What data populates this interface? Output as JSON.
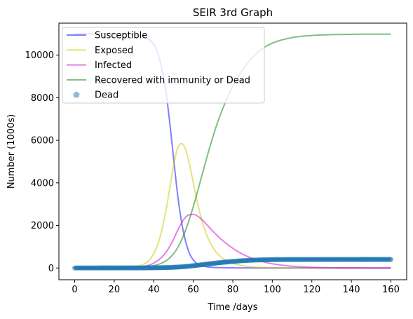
{
  "chart_data": {
    "type": "line",
    "title": "SEIR 3rd Graph",
    "xlabel": "Time /days",
    "ylabel": "Number (1000s)",
    "xlim": [
      -8,
      168
    ],
    "ylim": [
      -550,
      11500
    ],
    "xticks": [
      0,
      20,
      40,
      60,
      80,
      100,
      120,
      140,
      160
    ],
    "yticks": [
      0,
      2000,
      4000,
      6000,
      8000,
      10000
    ],
    "grid": false,
    "legend_position": "top-left",
    "series": [
      {
        "name": "Susceptible",
        "color": "#0000ff",
        "style": "line",
        "x": [
          0,
          10,
          20,
          30,
          34,
          38,
          40,
          42,
          44,
          46,
          48,
          50,
          52,
          54,
          56,
          58,
          60,
          62,
          64,
          66,
          70,
          75,
          80,
          90,
          100,
          120,
          140,
          160
        ],
        "y": [
          11000,
          11000,
          10995,
          10960,
          10900,
          10700,
          10500,
          10100,
          9400,
          8400,
          6900,
          5200,
          3500,
          2200,
          1300,
          700,
          380,
          200,
          120,
          70,
          30,
          15,
          8,
          4,
          2,
          1,
          1,
          1
        ]
      },
      {
        "name": "Exposed",
        "color": "#c8c800",
        "style": "line",
        "x": [
          0,
          10,
          20,
          30,
          34,
          38,
          42,
          46,
          48,
          50,
          52,
          54,
          56,
          58,
          60,
          62,
          64,
          66,
          68,
          70,
          72,
          75,
          80,
          85,
          90,
          100,
          110,
          120,
          140,
          160
        ],
        "y": [
          0,
          2,
          10,
          60,
          150,
          400,
          1100,
          2600,
          3700,
          4800,
          5600,
          5850,
          5600,
          4900,
          4000,
          3100,
          2350,
          1750,
          1300,
          950,
          700,
          450,
          220,
          110,
          55,
          15,
          5,
          2,
          0,
          0
        ]
      },
      {
        "name": "Infected",
        "color": "#cc00cc",
        "style": "line",
        "x": [
          0,
          10,
          20,
          30,
          35,
          40,
          45,
          48,
          50,
          52,
          54,
          56,
          58,
          60,
          62,
          64,
          66,
          68,
          70,
          75,
          80,
          85,
          90,
          95,
          100,
          110,
          120,
          130,
          140,
          160
        ],
        "y": [
          0,
          1,
          5,
          25,
          80,
          230,
          600,
          1000,
          1350,
          1750,
          2100,
          2380,
          2500,
          2520,
          2450,
          2300,
          2120,
          1920,
          1720,
          1280,
          930,
          650,
          450,
          300,
          200,
          85,
          35,
          15,
          6,
          1
        ]
      },
      {
        "name": "Recovered with immunity or Dead",
        "color": "#008000",
        "style": "line",
        "x": [
          0,
          10,
          20,
          30,
          35,
          40,
          42,
          44,
          46,
          48,
          50,
          52,
          54,
          56,
          58,
          60,
          62,
          64,
          66,
          68,
          70,
          72,
          75,
          78,
          80,
          85,
          90,
          95,
          100,
          110,
          120,
          130,
          140,
          150,
          160
        ],
        "y": [
          0,
          0,
          2,
          15,
          40,
          110,
          160,
          230,
          330,
          470,
          670,
          940,
          1300,
          1750,
          2280,
          2880,
          3530,
          4220,
          4900,
          5560,
          6180,
          6760,
          7500,
          8150,
          8520,
          9300,
          9900,
          10300,
          10560,
          10820,
          10920,
          10960,
          10975,
          10982,
          10985
        ]
      },
      {
        "name": "Dead",
        "color": "#1f77b4",
        "style": "markers",
        "marker": "pentagon",
        "x_start": 0,
        "x_end": 160,
        "x_step": 0.5,
        "curve": {
          "x": [
            0,
            30,
            40,
            50,
            55,
            60,
            65,
            70,
            75,
            80,
            85,
            90,
            95,
            100,
            120,
            160
          ],
          "y": [
            0,
            2,
            8,
            30,
            60,
            105,
            160,
            215,
            265,
            305,
            340,
            365,
            380,
            390,
            398,
            400
          ]
        }
      }
    ]
  }
}
